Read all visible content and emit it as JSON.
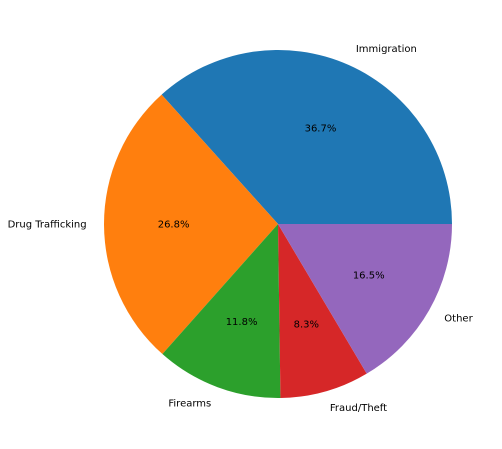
{
  "chart_data": {
    "type": "pie",
    "start_angle_deg": 0,
    "direction": "counterclockwise",
    "slices": [
      {
        "label": "Immigration",
        "value": 36.7,
        "pct_text": "36.7%",
        "color": "#1f77b4"
      },
      {
        "label": "Drug Trafficking",
        "value": 26.8,
        "pct_text": "26.8%",
        "color": "#ff7f0e"
      },
      {
        "label": "Firearms",
        "value": 11.8,
        "pct_text": "11.8%",
        "color": "#2ca02c"
      },
      {
        "label": "Fraud/Theft",
        "value": 8.3,
        "pct_text": "8.3%",
        "color": "#d62728"
      },
      {
        "label": "Other",
        "value": 16.5,
        "pct_text": "16.5%",
        "color": "#9467bd"
      }
    ]
  }
}
